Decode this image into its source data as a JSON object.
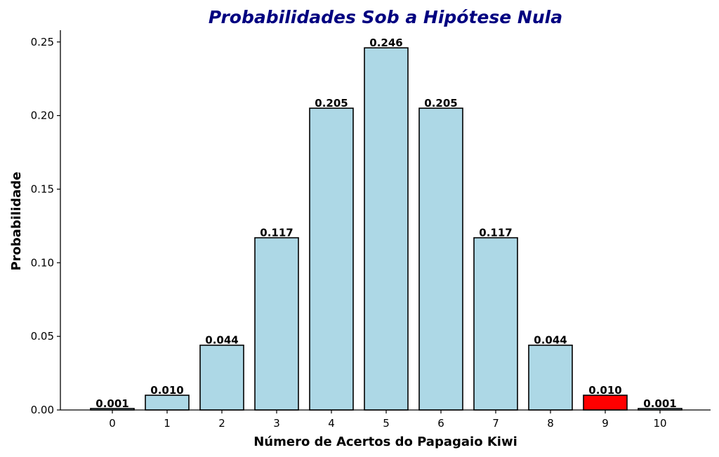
{
  "chart_data": {
    "type": "bar",
    "title": "Probabilidades Sob a Hipótese Nula",
    "xlabel": "Número de Acertos do Papagaio Kiwi",
    "ylabel": "Probabilidade",
    "categories": [
      "0",
      "1",
      "2",
      "3",
      "4",
      "5",
      "6",
      "7",
      "8",
      "9",
      "10"
    ],
    "values": [
      0.001,
      0.01,
      0.044,
      0.117,
      0.205,
      0.246,
      0.205,
      0.117,
      0.044,
      0.01,
      0.001
    ],
    "data_labels": [
      "0.001",
      "0.010",
      "0.044",
      "0.117",
      "0.205",
      "0.246",
      "0.205",
      "0.117",
      "0.044",
      "0.010",
      "0.001"
    ],
    "highlight_index": 9,
    "ylim": [
      0,
      0.258
    ],
    "yticks": [
      0.0,
      0.05,
      0.1,
      0.15,
      0.2,
      0.25
    ],
    "ytick_labels": [
      "0.00",
      "0.05",
      "0.10",
      "0.15",
      "0.20",
      "0.25"
    ],
    "grid": false,
    "colors": {
      "bar": "#add8e6",
      "highlight": "#ff0000",
      "edge": "#000000",
      "title": "#000080"
    }
  }
}
